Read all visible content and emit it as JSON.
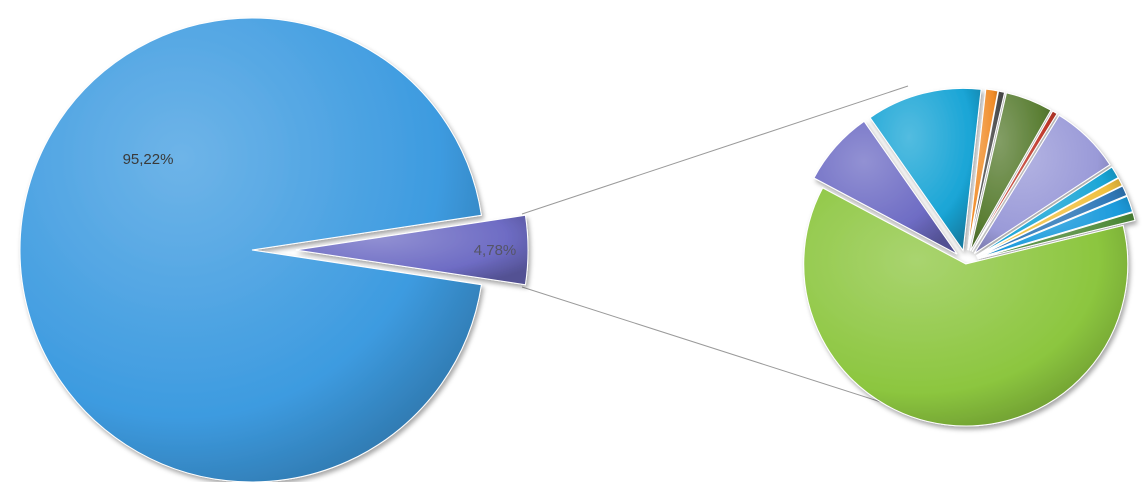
{
  "chart_data": [
    {
      "type": "pie",
      "title": "",
      "values": [
        95.22,
        4.78
      ],
      "labels": [
        "95,22%",
        "4,78%"
      ],
      "colors": [
        "#3d9be0",
        "#6e6cc4"
      ],
      "exploded_slice_index": 1,
      "breakout_to_secondary_pie": true
    },
    {
      "type": "pie",
      "title": "",
      "data_labels": false,
      "values": [
        7.5,
        11.5,
        1.2,
        0.6,
        4.7,
        0.5,
        7.0,
        1.2,
        0.8,
        1.0,
        1.6,
        0.8,
        61.6
      ],
      "colors": [
        "#6e6cc4",
        "#1aa5d6",
        "#f08c28",
        "#4a4a4a",
        "#5a7e33",
        "#c0392b",
        "#9a9ad8",
        "#1aa5d6",
        "#f0c040",
        "#2f78b8",
        "#1c9bdc",
        "#4e8a38",
        "#8cc63f"
      ]
    }
  ]
}
